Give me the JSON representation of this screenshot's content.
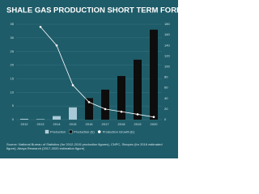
{
  "chart_data": {
    "type": "bar",
    "title": "SHALE GAS PRODUCTION SHORT TERM FORECAST",
    "categories": [
      "2012",
      "2013",
      "2014",
      "2015",
      "2016",
      "2017",
      "2018",
      "2019",
      "2020"
    ],
    "series": [
      {
        "name": "Production",
        "color": "#a9c9d6",
        "values": [
          0.3,
          0.2,
          1.3,
          4.5,
          null,
          null,
          null,
          null,
          null
        ]
      },
      {
        "name": "Production (E)",
        "color": "#0d0d0d",
        "values": [
          null,
          null,
          null,
          null,
          7.9,
          11,
          16,
          22,
          33
        ]
      },
      {
        "name": "Production Growth (E)",
        "color": "#ffffff",
        "type": "line",
        "axis": "y2",
        "values": [
          null,
          175,
          140,
          65,
          33,
          20,
          15,
          10,
          5
        ]
      }
    ],
    "ylim": [
      0,
      35
    ],
    "yticks": [
      0,
      5,
      10,
      15,
      20,
      25,
      30,
      35
    ],
    "y2lim": [
      0,
      180
    ],
    "y2ticks": [
      0,
      20,
      40,
      60,
      80,
      100,
      120,
      140,
      160,
      180
    ],
    "grid": true,
    "source": "Source: National Bureau of Statistics (for 2012-2015 production figures), CNPC, Sinopec (for 2016 estimated figure); Abaya Research (2017-2020 estimation figure)"
  }
}
